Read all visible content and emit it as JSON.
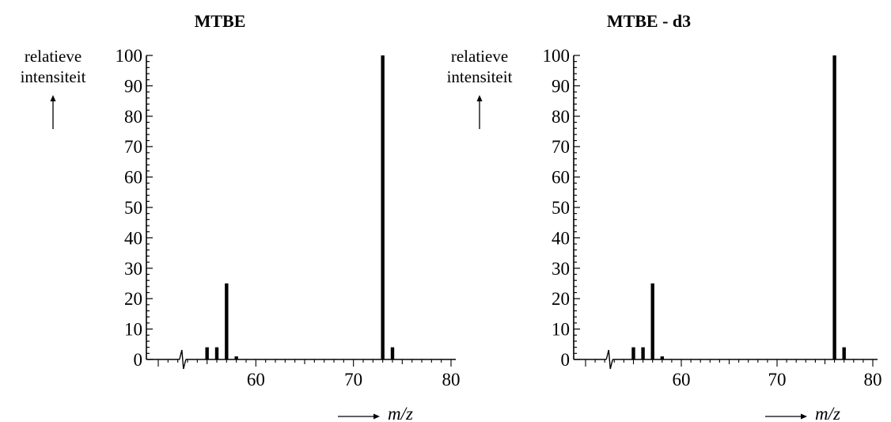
{
  "chart_data": [
    {
      "type": "bar",
      "title": "MTBE",
      "ylabel": [
        "relatieve",
        "intensiteit"
      ],
      "xlabel": "m/z",
      "ylim": [
        0,
        100
      ],
      "xlim": [
        50,
        80
      ],
      "yticks": [
        "0",
        "10",
        "20",
        "30",
        "40",
        "50",
        "60",
        "70",
        "80",
        "90",
        "100"
      ],
      "xticks": [
        "60",
        "70",
        "80"
      ],
      "axis_break": true,
      "bars": [
        {
          "x": 55,
          "y": 4
        },
        {
          "x": 56,
          "y": 4
        },
        {
          "x": 57,
          "y": 25
        },
        {
          "x": 58,
          "y": 1
        },
        {
          "x": 73,
          "y": 100
        },
        {
          "x": 74,
          "y": 4
        }
      ]
    },
    {
      "type": "bar",
      "title": "MTBE - d3",
      "ylabel": [
        "relatieve",
        "intensiteit"
      ],
      "xlabel": "m/z",
      "ylim": [
        0,
        100
      ],
      "xlim": [
        50,
        80
      ],
      "yticks": [
        "0",
        "10",
        "20",
        "30",
        "40",
        "50",
        "60",
        "70",
        "80",
        "90",
        "100"
      ],
      "xticks": [
        "60",
        "70",
        "80"
      ],
      "axis_break": true,
      "bars": [
        {
          "x": 55,
          "y": 4
        },
        {
          "x": 56,
          "y": 4
        },
        {
          "x": 57,
          "y": 25
        },
        {
          "x": 58,
          "y": 1
        },
        {
          "x": 76,
          "y": 100
        },
        {
          "x": 77,
          "y": 4
        }
      ]
    }
  ]
}
